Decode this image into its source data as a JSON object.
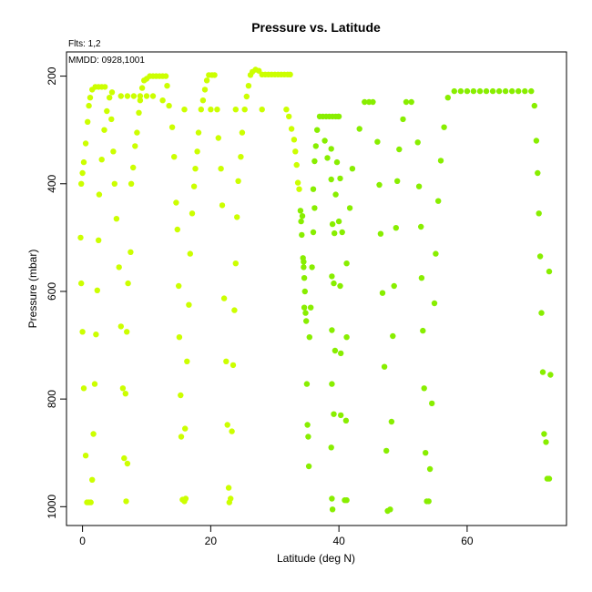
{
  "chart_data": {
    "type": "scatter",
    "title": "Pressure vs. Latitude",
    "annotations": [
      "Flts: 1,2",
      "MMDD: 0928,1001"
    ],
    "xlabel": "Latitude (deg N)",
    "ylabel": "Pressure (mbar)",
    "xlim": [
      -2.5,
      75.5
    ],
    "ylim": [
      1035,
      155
    ],
    "y_inverted": true,
    "xticks": [
      0,
      20,
      40,
      60
    ],
    "yticks": [
      200,
      400,
      600,
      800,
      1000
    ],
    "grid": false,
    "point_colors": {
      "south": "#ccff00",
      "north": "#88ee00"
    },
    "color_split_latitude": 34,
    "points": [
      [
        -0.2,
        400
      ],
      [
        0,
        380
      ],
      [
        0.2,
        360
      ],
      [
        0.5,
        325
      ],
      [
        0.8,
        285
      ],
      [
        1.0,
        255
      ],
      [
        1.2,
        240
      ],
      [
        1.5,
        225
      ],
      [
        2.0,
        220
      ],
      [
        2.5,
        220
      ],
      [
        3.0,
        220
      ],
      [
        3.5,
        220
      ],
      [
        2.6,
        420
      ],
      [
        3.0,
        355
      ],
      [
        3.4,
        300
      ],
      [
        3.8,
        265
      ],
      [
        4.2,
        240
      ],
      [
        4.6,
        230
      ],
      [
        4.5,
        280
      ],
      [
        4.8,
        340
      ],
      [
        5.0,
        400
      ],
      [
        5.3,
        465
      ],
      [
        5.7,
        555
      ],
      [
        6.0,
        665
      ],
      [
        6.3,
        780
      ],
      [
        6.5,
        910
      ],
      [
        6.8,
        990
      ],
      [
        7.0,
        920
      ],
      [
        6.7,
        790
      ],
      [
        6.9,
        675
      ],
      [
        7.1,
        585
      ],
      [
        7.5,
        527
      ],
      [
        -0.3,
        500
      ],
      [
        -0.2,
        585
      ],
      [
        0,
        675
      ],
      [
        0.2,
        780
      ],
      [
        0.5,
        905
      ],
      [
        0.7,
        992
      ],
      [
        1.0,
        992
      ],
      [
        1.3,
        992
      ],
      [
        1.5,
        950
      ],
      [
        1.7,
        865
      ],
      [
        1.9,
        772
      ],
      [
        2.1,
        680
      ],
      [
        2.3,
        598
      ],
      [
        2.5,
        505
      ],
      [
        6,
        237
      ],
      [
        7,
        237
      ],
      [
        8,
        237
      ],
      [
        9,
        237
      ],
      [
        10,
        237
      ],
      [
        11,
        237
      ],
      [
        7.6,
        400
      ],
      [
        7.9,
        370
      ],
      [
        8.2,
        330
      ],
      [
        8.5,
        305
      ],
      [
        8.8,
        268
      ],
      [
        9.0,
        245
      ],
      [
        9.3,
        222
      ],
      [
        9.6,
        208
      ],
      [
        10,
        205
      ],
      [
        10.5,
        200
      ],
      [
        11,
        200
      ],
      [
        11.5,
        200
      ],
      [
        12,
        200
      ],
      [
        12.5,
        200
      ],
      [
        13,
        200
      ],
      [
        13.2,
        218
      ],
      [
        12.5,
        245
      ],
      [
        13.5,
        255
      ],
      [
        14.0,
        295
      ],
      [
        14.3,
        350
      ],
      [
        14.6,
        435
      ],
      [
        14.8,
        485
      ],
      [
        15.0,
        590
      ],
      [
        15.1,
        685
      ],
      [
        15.3,
        793
      ],
      [
        15.4,
        870
      ],
      [
        15.6,
        987
      ],
      [
        15.9,
        990
      ],
      [
        16.1,
        985
      ],
      [
        16.0,
        855
      ],
      [
        16.3,
        730
      ],
      [
        16.6,
        625
      ],
      [
        16.8,
        530
      ],
      [
        17.1,
        455
      ],
      [
        17.4,
        405
      ],
      [
        17.6,
        372
      ],
      [
        17.9,
        340
      ],
      [
        18.1,
        305
      ],
      [
        18.5,
        262
      ],
      [
        15.9,
        262
      ],
      [
        18.8,
        245
      ],
      [
        19.1,
        225
      ],
      [
        19.4,
        208
      ],
      [
        19.7,
        198
      ],
      [
        20.2,
        198
      ],
      [
        20.6,
        198
      ],
      [
        20.0,
        262
      ],
      [
        21.0,
        262
      ],
      [
        21.2,
        315
      ],
      [
        21.6,
        372
      ],
      [
        21.8,
        440
      ],
      [
        22.1,
        613
      ],
      [
        22.4,
        730
      ],
      [
        22.6,
        848
      ],
      [
        22.8,
        965
      ],
      [
        22.9,
        992
      ],
      [
        23.1,
        985
      ],
      [
        23.3,
        860
      ],
      [
        23.5,
        737
      ],
      [
        23.7,
        635
      ],
      [
        23.9,
        548
      ],
      [
        24.1,
        462
      ],
      [
        24.3,
        395
      ],
      [
        24.7,
        350
      ],
      [
        24.9,
        305
      ],
      [
        25.3,
        262
      ],
      [
        23.9,
        262
      ],
      [
        25.6,
        238
      ],
      [
        25.9,
        218
      ],
      [
        26.2,
        198
      ],
      [
        26.5,
        192
      ],
      [
        27.0,
        188
      ],
      [
        27.5,
        190
      ],
      [
        28,
        197
      ],
      [
        28.5,
        197
      ],
      [
        29,
        197
      ],
      [
        29.5,
        197
      ],
      [
        30,
        197
      ],
      [
        30.5,
        197
      ],
      [
        31,
        197
      ],
      [
        31.5,
        197
      ],
      [
        32,
        197
      ],
      [
        32.4,
        197
      ],
      [
        28.0,
        262
      ],
      [
        31.8,
        262
      ],
      [
        32.2,
        275
      ],
      [
        32.6,
        298
      ],
      [
        33.0,
        318
      ],
      [
        33.2,
        340
      ],
      [
        33.4,
        365
      ],
      [
        33.6,
        398
      ],
      [
        33.8,
        410
      ],
      [
        34.0,
        450
      ],
      [
        34.1,
        470
      ],
      [
        34.2,
        495
      ],
      [
        34.4,
        538
      ],
      [
        34.5,
        555
      ],
      [
        34.6,
        575
      ],
      [
        34.7,
        600
      ],
      [
        34.8,
        640
      ],
      [
        34.9,
        655
      ],
      [
        35.0,
        772
      ],
      [
        35.1,
        848
      ],
      [
        35.2,
        870
      ],
      [
        35.3,
        925
      ],
      [
        34.3,
        460
      ],
      [
        34.5,
        545
      ],
      [
        34.6,
        630
      ],
      [
        35.6,
        630
      ],
      [
        35.4,
        685
      ],
      [
        35.8,
        555
      ],
      [
        36.0,
        490
      ],
      [
        36.2,
        445
      ],
      [
        36.0,
        410
      ],
      [
        36.2,
        358
      ],
      [
        36.4,
        330
      ],
      [
        36.6,
        300
      ],
      [
        37,
        275
      ],
      [
        37.5,
        275
      ],
      [
        38,
        275
      ],
      [
        38.5,
        275
      ],
      [
        39,
        275
      ],
      [
        39.5,
        275
      ],
      [
        40,
        275
      ],
      [
        37.8,
        320
      ],
      [
        38.2,
        352
      ],
      [
        38.8,
        392
      ],
      [
        39.5,
        420
      ],
      [
        40.2,
        390
      ],
      [
        39.7,
        360
      ],
      [
        39.9,
        275
      ],
      [
        38.8,
        335
      ],
      [
        39.0,
        475
      ],
      [
        39.3,
        492
      ],
      [
        40.0,
        470
      ],
      [
        40.5,
        490
      ],
      [
        41.2,
        548
      ],
      [
        38.9,
        572
      ],
      [
        39.2,
        585
      ],
      [
        40.2,
        590
      ],
      [
        38.9,
        672
      ],
      [
        39.4,
        710
      ],
      [
        40.3,
        715
      ],
      [
        41.2,
        685
      ],
      [
        38.9,
        772
      ],
      [
        39.2,
        828
      ],
      [
        40.3,
        830
      ],
      [
        41.1,
        840
      ],
      [
        38.8,
        890
      ],
      [
        38.9,
        985
      ],
      [
        39.0,
        1005
      ],
      [
        40.9,
        988
      ],
      [
        41.2,
        988
      ],
      [
        42.1,
        372
      ],
      [
        41.7,
        445
      ],
      [
        43.2,
        298
      ],
      [
        44.0,
        248
      ],
      [
        44.7,
        248
      ],
      [
        45.3,
        248
      ],
      [
        46.0,
        322
      ],
      [
        46.3,
        402
      ],
      [
        46.5,
        493
      ],
      [
        46.8,
        603
      ],
      [
        47.1,
        740
      ],
      [
        47.4,
        896
      ],
      [
        47.6,
        1008
      ],
      [
        48.0,
        1005
      ],
      [
        48.2,
        842
      ],
      [
        48.4,
        683
      ],
      [
        48.6,
        590
      ],
      [
        48.9,
        482
      ],
      [
        49.1,
        395
      ],
      [
        49.4,
        336
      ],
      [
        50.0,
        280
      ],
      [
        50.5,
        248
      ],
      [
        51.3,
        248
      ],
      [
        52.3,
        323
      ],
      [
        52.5,
        405
      ],
      [
        52.8,
        480
      ],
      [
        52.9,
        575
      ],
      [
        53.1,
        673
      ],
      [
        53.3,
        780
      ],
      [
        53.5,
        900
      ],
      [
        53.7,
        990
      ],
      [
        54.0,
        990
      ],
      [
        54.2,
        930
      ],
      [
        54.5,
        808
      ],
      [
        54.9,
        622
      ],
      [
        55.1,
        530
      ],
      [
        55.5,
        432
      ],
      [
        55.9,
        357
      ],
      [
        56.4,
        295
      ],
      [
        57.0,
        240
      ],
      [
        58,
        228
      ],
      [
        59,
        228
      ],
      [
        60,
        228
      ],
      [
        61,
        228
      ],
      [
        62,
        228
      ],
      [
        63,
        228
      ],
      [
        64,
        228
      ],
      [
        65,
        228
      ],
      [
        66,
        228
      ],
      [
        67,
        228
      ],
      [
        68,
        228
      ],
      [
        69,
        228
      ],
      [
        70,
        228
      ],
      [
        70.5,
        255
      ],
      [
        70.8,
        320
      ],
      [
        71.0,
        380
      ],
      [
        71.2,
        455
      ],
      [
        71.4,
        535
      ],
      [
        71.6,
        640
      ],
      [
        71.8,
        750
      ],
      [
        72.0,
        865
      ],
      [
        72.3,
        880
      ],
      [
        72.5,
        948
      ],
      [
        72.8,
        948
      ],
      [
        73.0,
        755
      ],
      [
        72.8,
        563
      ]
    ]
  }
}
